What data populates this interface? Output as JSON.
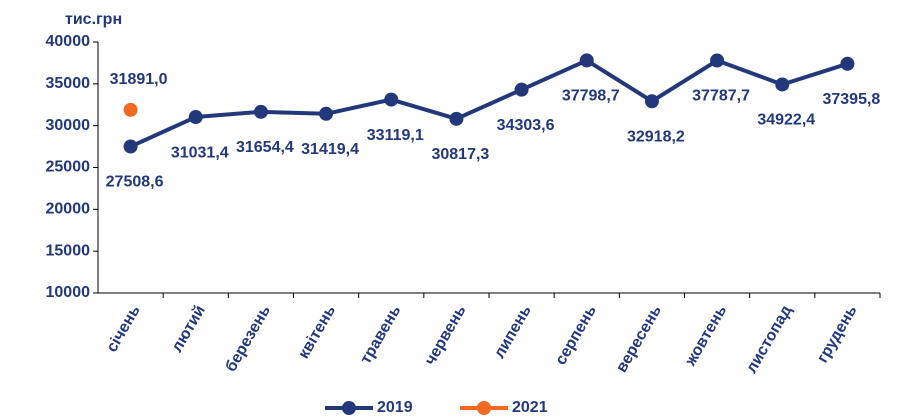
{
  "chart_data": {
    "type": "line",
    "y_label": "тис.грн",
    "categories": [
      "січень",
      "лютий",
      "березень",
      "квітень",
      "травень",
      "червень",
      "липень",
      "серпень",
      "вересень",
      "жовтень",
      "листопад",
      "грудень"
    ],
    "series": [
      {
        "name": "2019",
        "color": "#22387a",
        "values": [
          27508.6,
          31031.4,
          31654.4,
          31419.4,
          33119.1,
          30817.3,
          34303.6,
          37798.7,
          32918.2,
          37787.7,
          34922.4,
          37395.8
        ],
        "value_labels": [
          "27508,6",
          "31031,4",
          "31654,4",
          "31419,4",
          "33119,1",
          "30817,3",
          "34303,6",
          "37798,7",
          "32918,2",
          "37787,7",
          "34922,4",
          "37395,8"
        ]
      },
      {
        "name": "2021",
        "color": "#f26a21",
        "values": [
          31891.0,
          null,
          null,
          null,
          null,
          null,
          null,
          null,
          null,
          null,
          null,
          null
        ],
        "value_labels": [
          "31891,0",
          null,
          null,
          null,
          null,
          null,
          null,
          null,
          null,
          null,
          null,
          null
        ]
      }
    ],
    "ylim": [
      10000,
      40000
    ],
    "yticks": [
      10000,
      15000,
      20000,
      25000,
      30000,
      35000,
      40000
    ],
    "grid": false,
    "legend": "bottom"
  }
}
